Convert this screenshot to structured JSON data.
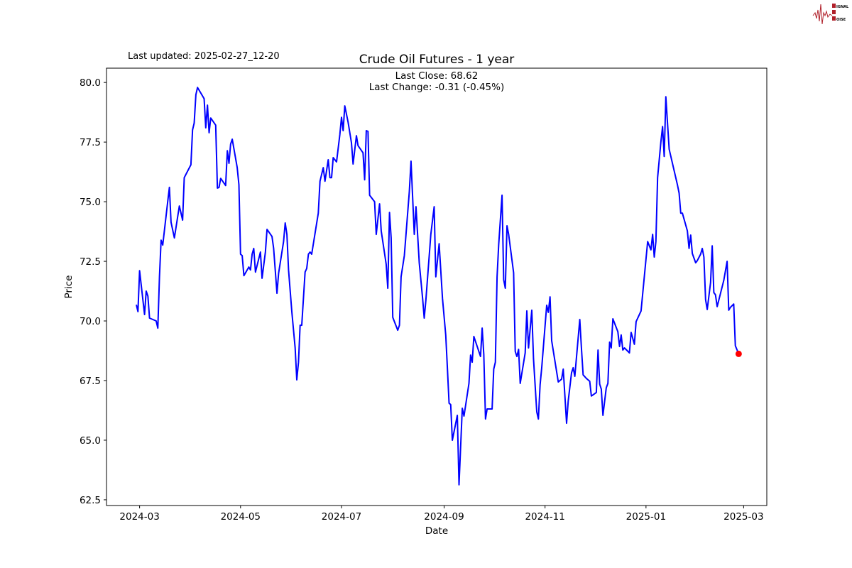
{
  "logo": {
    "text": [
      "SIGNAL",
      "2",
      "NOISE"
    ],
    "color": "#b0202a"
  },
  "last_updated": "Last updated: 2025-02-27_12-20",
  "chart_data": {
    "type": "line",
    "title": "Crude Oil Futures - 1 year",
    "annotations": [
      "Last Close: 68.62",
      "Last Change: -0.31 (-0.45%)"
    ],
    "xlabel": "Date",
    "ylabel": "Price",
    "xlim": [
      "2024-02-10",
      "2025-03-15"
    ],
    "ylim": [
      62.26,
      80.6
    ],
    "x_ticks": [
      "2024-03",
      "2024-05",
      "2024-07",
      "2024-09",
      "2024-11",
      "2025-01",
      "2025-03"
    ],
    "y_ticks": [
      "62.5",
      "65.0",
      "67.5",
      "70.0",
      "72.5",
      "75.0",
      "77.5",
      "80.0"
    ],
    "grid": false,
    "line_color": "#0000ff",
    "last_point": {
      "date": "2025-02-26",
      "value": 68.62,
      "color": "#ff0000"
    },
    "points": [
      [
        "2024-02-28",
        70.68
      ],
      [
        "2024-02-29",
        70.39
      ],
      [
        "2024-03-01",
        72.11
      ],
      [
        "2024-03-04",
        70.27
      ],
      [
        "2024-03-05",
        71.25
      ],
      [
        "2024-03-06",
        71.04
      ],
      [
        "2024-03-07",
        70.12
      ],
      [
        "2024-03-11",
        70.0
      ],
      [
        "2024-03-12",
        69.7
      ],
      [
        "2024-03-13",
        71.85
      ],
      [
        "2024-03-14",
        73.39
      ],
      [
        "2024-03-15",
        73.18
      ],
      [
        "2024-03-18",
        75.0
      ],
      [
        "2024-03-19",
        75.6
      ],
      [
        "2024-03-20",
        74.14
      ],
      [
        "2024-03-22",
        73.48
      ],
      [
        "2024-03-25",
        74.82
      ],
      [
        "2024-03-27",
        74.23
      ],
      [
        "2024-03-28",
        76.01
      ],
      [
        "2024-04-01",
        76.55
      ],
      [
        "2024-04-02",
        78.01
      ],
      [
        "2024-04-03",
        78.3
      ],
      [
        "2024-04-04",
        79.49
      ],
      [
        "2024-04-05",
        79.79
      ],
      [
        "2024-04-09",
        79.32
      ],
      [
        "2024-04-10",
        78.1
      ],
      [
        "2024-04-11",
        79.05
      ],
      [
        "2024-04-12",
        77.89
      ],
      [
        "2024-04-13",
        78.51
      ],
      [
        "2024-04-16",
        78.21
      ],
      [
        "2024-04-17",
        75.57
      ],
      [
        "2024-04-18",
        75.6
      ],
      [
        "2024-04-19",
        75.98
      ],
      [
        "2024-04-22",
        75.68
      ],
      [
        "2024-04-23",
        77.14
      ],
      [
        "2024-04-24",
        76.61
      ],
      [
        "2024-04-25",
        77.41
      ],
      [
        "2024-04-26",
        77.62
      ],
      [
        "2024-04-29",
        76.43
      ],
      [
        "2024-04-30",
        75.71
      ],
      [
        "2024-05-01",
        72.8
      ],
      [
        "2024-05-02",
        72.74
      ],
      [
        "2024-05-03",
        71.9
      ],
      [
        "2024-05-06",
        72.26
      ],
      [
        "2024-05-07",
        72.14
      ],
      [
        "2024-05-08",
        72.8
      ],
      [
        "2024-05-09",
        73.04
      ],
      [
        "2024-05-10",
        72.05
      ],
      [
        "2024-05-13",
        72.89
      ],
      [
        "2024-05-14",
        71.79
      ],
      [
        "2024-05-16",
        72.89
      ],
      [
        "2024-05-17",
        73.84
      ],
      [
        "2024-05-20",
        73.54
      ],
      [
        "2024-05-21",
        73.04
      ],
      [
        "2024-05-23",
        71.16
      ],
      [
        "2024-05-24",
        72.0
      ],
      [
        "2024-05-27",
        73.33
      ],
      [
        "2024-05-28",
        74.11
      ],
      [
        "2024-05-29",
        73.63
      ],
      [
        "2024-05-30",
        72.14
      ],
      [
        "2024-06-01",
        70.36
      ],
      [
        "2024-06-03",
        68.87
      ],
      [
        "2024-06-04",
        67.53
      ],
      [
        "2024-06-05",
        68.27
      ],
      [
        "2024-06-06",
        69.82
      ],
      [
        "2024-06-07",
        69.82
      ],
      [
        "2024-06-09",
        72.05
      ],
      [
        "2024-06-10",
        72.2
      ],
      [
        "2024-06-11",
        72.8
      ],
      [
        "2024-06-12",
        72.89
      ],
      [
        "2024-06-13",
        72.8
      ],
      [
        "2024-06-17",
        74.52
      ],
      [
        "2024-06-18",
        75.86
      ],
      [
        "2024-06-20",
        76.43
      ],
      [
        "2024-06-21",
        75.86
      ],
      [
        "2024-06-23",
        76.76
      ],
      [
        "2024-06-24",
        76.01
      ],
      [
        "2024-06-25",
        76.01
      ],
      [
        "2024-06-26",
        76.85
      ],
      [
        "2024-06-28",
        76.67
      ],
      [
        "2024-06-30",
        77.8
      ],
      [
        "2024-07-01",
        78.54
      ],
      [
        "2024-07-02",
        77.98
      ],
      [
        "2024-07-03",
        79.02
      ],
      [
        "2024-07-05",
        78.33
      ],
      [
        "2024-07-07",
        77.47
      ],
      [
        "2024-07-08",
        76.58
      ],
      [
        "2024-07-10",
        77.77
      ],
      [
        "2024-07-11",
        77.35
      ],
      [
        "2024-07-14",
        77.05
      ],
      [
        "2024-07-15",
        75.92
      ],
      [
        "2024-07-16",
        77.98
      ],
      [
        "2024-07-17",
        77.95
      ],
      [
        "2024-07-18",
        75.27
      ],
      [
        "2024-07-21",
        75.0
      ],
      [
        "2024-07-22",
        73.63
      ],
      [
        "2024-07-24",
        74.91
      ],
      [
        "2024-07-25",
        73.78
      ],
      [
        "2024-07-28",
        72.38
      ],
      [
        "2024-07-29",
        71.37
      ],
      [
        "2024-07-30",
        74.55
      ],
      [
        "2024-07-31",
        73.48
      ],
      [
        "2024-08-01",
        70.15
      ],
      [
        "2024-08-04",
        69.61
      ],
      [
        "2024-08-05",
        69.82
      ],
      [
        "2024-08-06",
        71.85
      ],
      [
        "2024-08-08",
        72.74
      ],
      [
        "2024-08-11",
        75.42
      ],
      [
        "2024-08-12",
        76.7
      ],
      [
        "2024-08-14",
        73.63
      ],
      [
        "2024-08-15",
        74.79
      ],
      [
        "2024-08-17",
        72.44
      ],
      [
        "2024-08-19",
        70.95
      ],
      [
        "2024-08-20",
        70.12
      ],
      [
        "2024-08-21",
        70.86
      ],
      [
        "2024-08-24",
        73.63
      ],
      [
        "2024-08-26",
        74.79
      ],
      [
        "2024-08-27",
        71.85
      ],
      [
        "2024-08-29",
        73.24
      ],
      [
        "2024-08-31",
        70.95
      ],
      [
        "2024-09-02",
        69.41
      ],
      [
        "2024-09-03",
        67.98
      ],
      [
        "2024-09-04",
        66.55
      ],
      [
        "2024-09-05",
        66.49
      ],
      [
        "2024-09-06",
        65.0
      ],
      [
        "2024-09-09",
        66.04
      ],
      [
        "2024-09-10",
        63.13
      ],
      [
        "2024-09-12",
        66.34
      ],
      [
        "2024-09-13",
        66.01
      ],
      [
        "2024-09-16",
        67.38
      ],
      [
        "2024-09-17",
        68.57
      ],
      [
        "2024-09-18",
        68.27
      ],
      [
        "2024-09-19",
        69.35
      ],
      [
        "2024-09-23",
        68.51
      ],
      [
        "2024-09-24",
        69.7
      ],
      [
        "2024-09-25",
        68.6
      ],
      [
        "2024-09-26",
        65.89
      ],
      [
        "2024-09-27",
        66.31
      ],
      [
        "2024-09-30",
        66.31
      ],
      [
        "2024-10-01",
        67.98
      ],
      [
        "2024-10-02",
        68.27
      ],
      [
        "2024-10-03",
        71.85
      ],
      [
        "2024-10-04",
        73.21
      ],
      [
        "2024-10-06",
        75.27
      ],
      [
        "2024-10-07",
        71.73
      ],
      [
        "2024-10-08",
        71.37
      ],
      [
        "2024-10-09",
        73.99
      ],
      [
        "2024-10-10",
        73.63
      ],
      [
        "2024-10-13",
        72.02
      ],
      [
        "2024-10-14",
        68.72
      ],
      [
        "2024-10-15",
        68.51
      ],
      [
        "2024-10-16",
        68.81
      ],
      [
        "2024-10-17",
        67.38
      ],
      [
        "2024-10-20",
        68.66
      ],
      [
        "2024-10-21",
        70.42
      ],
      [
        "2024-10-22",
        68.87
      ],
      [
        "2024-10-24",
        70.45
      ],
      [
        "2024-10-25",
        68.42
      ],
      [
        "2024-10-27",
        66.19
      ],
      [
        "2024-10-28",
        65.89
      ],
      [
        "2024-10-29",
        67.32
      ],
      [
        "2024-10-30",
        68.04
      ],
      [
        "2024-11-02",
        70.66
      ],
      [
        "2024-11-03",
        70.36
      ],
      [
        "2024-11-04",
        71.01
      ],
      [
        "2024-11-05",
        69.17
      ],
      [
        "2024-11-09",
        67.44
      ],
      [
        "2024-11-11",
        67.56
      ],
      [
        "2024-11-12",
        67.98
      ],
      [
        "2024-11-14",
        65.71
      ],
      [
        "2024-11-15",
        66.64
      ],
      [
        "2024-11-17",
        67.83
      ],
      [
        "2024-11-18",
        68.04
      ],
      [
        "2024-11-19",
        67.68
      ],
      [
        "2024-11-22",
        70.06
      ],
      [
        "2024-11-23",
        68.87
      ],
      [
        "2024-11-24",
        67.74
      ],
      [
        "2024-11-26",
        67.59
      ],
      [
        "2024-11-28",
        67.47
      ],
      [
        "2024-11-29",
        66.85
      ],
      [
        "2024-12-02",
        67.0
      ],
      [
        "2024-12-03",
        68.78
      ],
      [
        "2024-12-04",
        67.35
      ],
      [
        "2024-12-05",
        67.14
      ],
      [
        "2024-12-06",
        66.04
      ],
      [
        "2024-12-08",
        67.2
      ],
      [
        "2024-12-09",
        67.38
      ],
      [
        "2024-12-10",
        69.11
      ],
      [
        "2024-12-11",
        68.87
      ],
      [
        "2024-12-12",
        70.09
      ],
      [
        "2024-12-15",
        69.55
      ],
      [
        "2024-12-16",
        68.93
      ],
      [
        "2024-12-17",
        69.41
      ],
      [
        "2024-12-18",
        68.78
      ],
      [
        "2024-12-19",
        68.87
      ],
      [
        "2024-12-22",
        68.66
      ],
      [
        "2024-12-23",
        69.52
      ],
      [
        "2024-12-25",
        69.02
      ],
      [
        "2024-12-26",
        69.97
      ],
      [
        "2024-12-29",
        70.42
      ],
      [
        "2025-01-02",
        73.33
      ],
      [
        "2025-01-04",
        72.98
      ],
      [
        "2025-01-05",
        73.63
      ],
      [
        "2025-01-06",
        72.68
      ],
      [
        "2025-01-07",
        73.33
      ],
      [
        "2025-01-08",
        76.01
      ],
      [
        "2025-01-10",
        77.5
      ],
      [
        "2025-01-11",
        78.15
      ],
      [
        "2025-01-12",
        76.9
      ],
      [
        "2025-01-13",
        79.4
      ],
      [
        "2025-01-15",
        77.2
      ],
      [
        "2025-01-20",
        75.71
      ],
      [
        "2025-01-21",
        75.36
      ],
      [
        "2025-01-22",
        74.52
      ],
      [
        "2025-01-23",
        74.52
      ],
      [
        "2025-01-26",
        73.78
      ],
      [
        "2025-01-27",
        73.04
      ],
      [
        "2025-01-28",
        73.6
      ],
      [
        "2025-01-29",
        72.83
      ],
      [
        "2025-01-31",
        72.44
      ],
      [
        "2025-02-01",
        72.53
      ],
      [
        "2025-02-03",
        72.8
      ],
      [
        "2025-02-04",
        73.04
      ],
      [
        "2025-02-05",
        72.68
      ],
      [
        "2025-02-06",
        70.89
      ],
      [
        "2025-02-07",
        70.48
      ],
      [
        "2025-02-09",
        71.61
      ],
      [
        "2025-02-10",
        73.15
      ],
      [
        "2025-02-11",
        71.19
      ],
      [
        "2025-02-12",
        71.1
      ],
      [
        "2025-02-13",
        70.6
      ],
      [
        "2025-02-17",
        71.7
      ],
      [
        "2025-02-19",
        72.5
      ],
      [
        "2025-02-20",
        70.45
      ],
      [
        "2025-02-21",
        70.57
      ],
      [
        "2025-02-23",
        70.71
      ],
      [
        "2025-02-24",
        68.96
      ],
      [
        "2025-02-26",
        68.62
      ]
    ]
  }
}
